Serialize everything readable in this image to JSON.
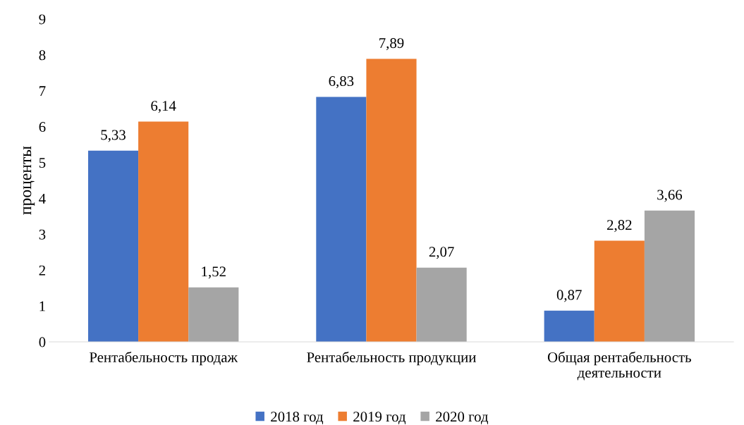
{
  "chart_data": {
    "type": "bar",
    "ylabel": "проценты",
    "categories": [
      "Рентабельность продаж",
      "Рентабельность продукции",
      "Общая рентабельность\nдеятельности"
    ],
    "series": [
      {
        "name": "2018 год",
        "color": "#4472c4",
        "values": [
          5.33,
          6.83,
          0.87
        ],
        "value_labels": [
          "5,33",
          "6,83",
          "0,87"
        ]
      },
      {
        "name": "2019 год",
        "color": "#ed7d31",
        "values": [
          6.14,
          7.89,
          2.82
        ],
        "value_labels": [
          "6,14",
          "7,89",
          "2,82"
        ]
      },
      {
        "name": "2020 год",
        "color": "#a5a5a5",
        "values": [
          1.52,
          2.07,
          3.66
        ],
        "value_labels": [
          "1,52",
          "2,07",
          "3,66"
        ]
      }
    ],
    "ylim": [
      0,
      9
    ],
    "yticks": [
      0,
      1,
      2,
      3,
      4,
      5,
      6,
      7,
      8,
      9
    ],
    "grid": false,
    "legend": "bottom"
  }
}
